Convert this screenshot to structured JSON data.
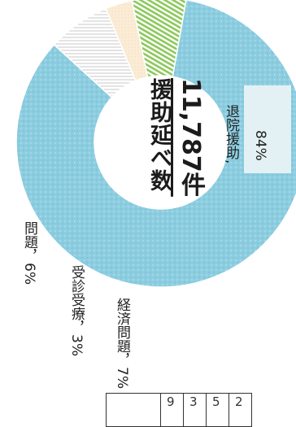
{
  "chart_data": {
    "type": "pie",
    "title": "援助延べ数",
    "total": "11,787件",
    "slices": [
      {
        "label": "退院援助,",
        "value": 84,
        "value_text": "84%",
        "color": "#8ccde0"
      },
      {
        "label": "経済問題，7%",
        "value": 7,
        "value_text": "7%",
        "color": "#f2f2f2"
      },
      {
        "label": "受診受療，3%",
        "value": 3,
        "value_text": "3%",
        "color": "#fae9d0"
      },
      {
        "label": "問題，6%",
        "value": 6,
        "value_text": "6%",
        "color": "#aad485"
      }
    ]
  },
  "table_fragment": {
    "cells": [
      "9",
      "3",
      "5",
      "2"
    ]
  }
}
